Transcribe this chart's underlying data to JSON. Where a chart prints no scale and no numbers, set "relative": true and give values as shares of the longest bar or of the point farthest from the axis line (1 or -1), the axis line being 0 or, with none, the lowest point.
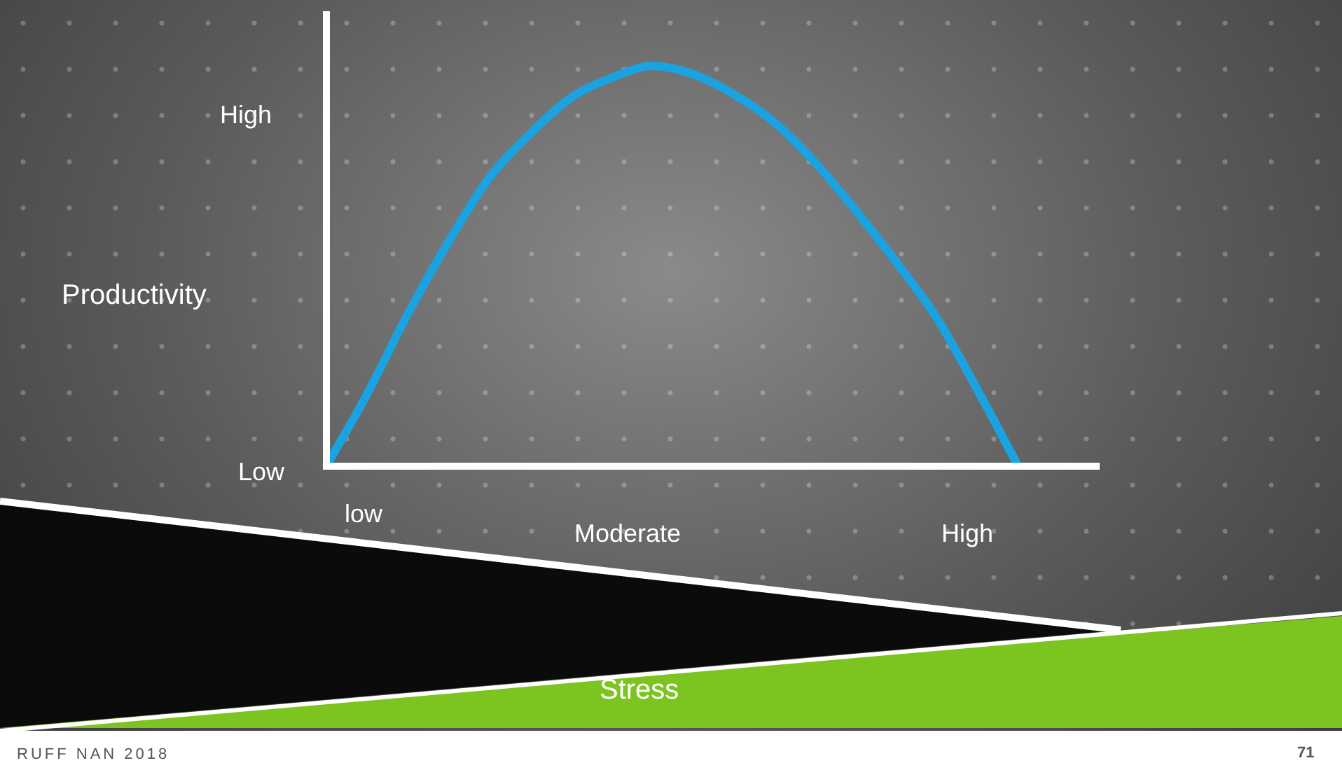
{
  "chart_data": {
    "type": "line",
    "relative": true,
    "ylabel": "Productivity",
    "categories": [
      null,
      null,
      null,
      null,
      null,
      null,
      null,
      null,
      null,
      null,
      null,
      null,
      null,
      null,
      null,
      null,
      null,
      null,
      null,
      null
    ],
    "series": [
      {
        "color": "#1aa3e0",
        "values": [
          0,
          0.18,
          0.38,
          0.56,
          0.72,
          0.83,
          0.92,
          0.97,
          1,
          0.98,
          0.93,
          0.86,
          0.76,
          0.64,
          0.51,
          0.37,
          0.19,
          0,
          null,
          null
        ]
      }
    ],
    "annotations": [
      "High",
      "Low",
      "low",
      "Moderate",
      "High",
      "Stress",
      "RUFF NAN 2018",
      "71"
    ],
    "marker": "none",
    "line_style": "solid"
  }
}
